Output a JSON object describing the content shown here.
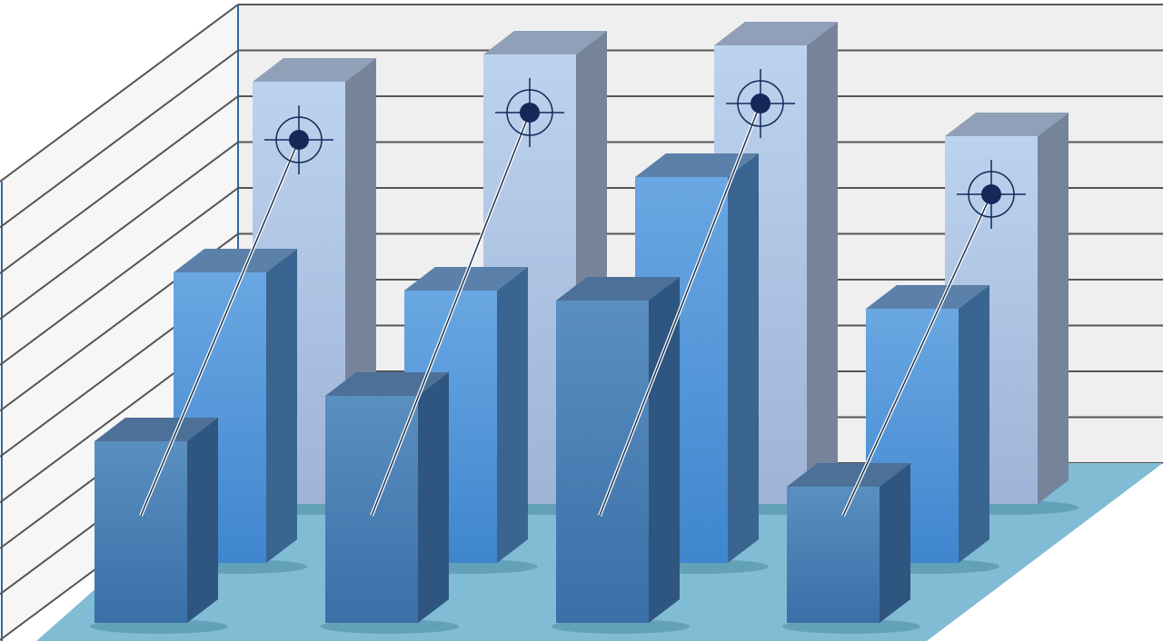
{
  "chart_data": {
    "type": "bar",
    "style": "3d-clustered-rows",
    "categories": [
      "",
      "",
      "",
      ""
    ],
    "series": [
      {
        "row": "back",
        "values": [
          9.3,
          9.9,
          10.1,
          8.1
        ],
        "color": "#b4cbe8",
        "markers": "crosshair-target"
      },
      {
        "row": "middle",
        "values": [
          6.4,
          6.0,
          8.5,
          5.6
        ],
        "color": "#5a9ad8"
      },
      {
        "row": "front",
        "values": [
          4.0,
          5.0,
          7.1,
          3.0
        ],
        "color": "#4a7fb5"
      }
    ],
    "ylim": [
      0,
      10
    ],
    "grid": true,
    "legend": "none",
    "colors": {
      "wall": "#efefef",
      "gridline": "#555555",
      "floor": "#80bcd3",
      "target": "#14285a"
    }
  }
}
